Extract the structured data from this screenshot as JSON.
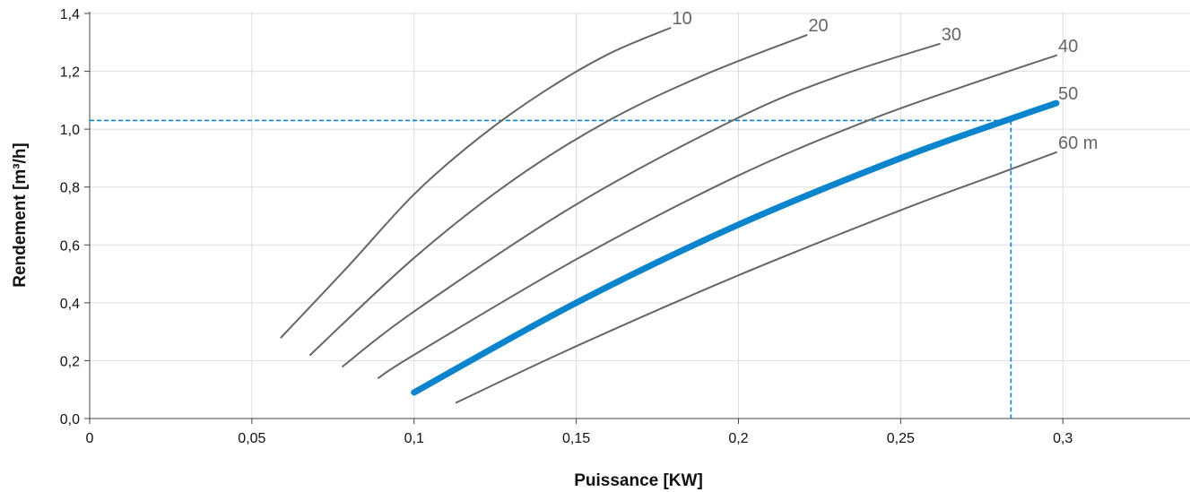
{
  "chart_data": {
    "type": "line",
    "title": "",
    "xlabel": "Puissance [KW]",
    "ylabel": "Rendement [m³/h]",
    "xlim": [
      0,
      0.345
    ],
    "ylim": [
      0,
      1.4
    ],
    "x_ticks": [
      {
        "value": 0,
        "label": "0"
      },
      {
        "value": 0.05,
        "label": "0,05"
      },
      {
        "value": 0.1,
        "label": "0,1"
      },
      {
        "value": 0.15,
        "label": "0,15"
      },
      {
        "value": 0.2,
        "label": "0,2"
      },
      {
        "value": 0.25,
        "label": "0,25"
      },
      {
        "value": 0.3,
        "label": "0,3"
      }
    ],
    "y_ticks": [
      {
        "value": 0,
        "label": "0,0"
      },
      {
        "value": 0.2,
        "label": "0,2"
      },
      {
        "value": 0.4,
        "label": "0,4"
      },
      {
        "value": 0.6,
        "label": "0,6"
      },
      {
        "value": 0.8,
        "label": "0,8"
      },
      {
        "value": 1.0,
        "label": "1,0"
      },
      {
        "value": 1.2,
        "label": "1,2"
      },
      {
        "value": 1.4,
        "label": "1,4"
      }
    ],
    "grid": true,
    "colors": {
      "curve": "#666666",
      "highlight": "#0a84cc",
      "grid": "#dddddd",
      "axis": "#444444",
      "reference": "#0a84cc"
    },
    "series": [
      {
        "label": "10",
        "highlight": false,
        "points": [
          [
            0.059,
            0.28
          ],
          [
            0.08,
            0.53
          ],
          [
            0.1,
            0.775
          ],
          [
            0.12,
            0.97
          ],
          [
            0.14,
            1.13
          ],
          [
            0.16,
            1.26
          ],
          [
            0.179,
            1.35
          ]
        ]
      },
      {
        "label": "20",
        "highlight": false,
        "points": [
          [
            0.068,
            0.22
          ],
          [
            0.1,
            0.555
          ],
          [
            0.13,
            0.82
          ],
          [
            0.16,
            1.03
          ],
          [
            0.19,
            1.19
          ],
          [
            0.221,
            1.325
          ]
        ]
      },
      {
        "label": "30",
        "highlight": false,
        "points": [
          [
            0.078,
            0.18
          ],
          [
            0.1,
            0.37
          ],
          [
            0.15,
            0.74
          ],
          [
            0.2,
            1.04
          ],
          [
            0.23,
            1.18
          ],
          [
            0.262,
            1.295
          ]
        ]
      },
      {
        "label": "40",
        "highlight": false,
        "points": [
          [
            0.089,
            0.14
          ],
          [
            0.1,
            0.22
          ],
          [
            0.15,
            0.55
          ],
          [
            0.2,
            0.84
          ],
          [
            0.24,
            1.03
          ],
          [
            0.27,
            1.15
          ],
          [
            0.298,
            1.255
          ]
        ]
      },
      {
        "label": "50",
        "highlight": true,
        "points": [
          [
            0.1,
            0.09
          ],
          [
            0.15,
            0.4
          ],
          [
            0.2,
            0.67
          ],
          [
            0.25,
            0.9
          ],
          [
            0.285,
            1.04
          ],
          [
            0.298,
            1.09
          ]
        ]
      },
      {
        "label": "60 m",
        "highlight": false,
        "points": [
          [
            0.113,
            0.055
          ],
          [
            0.15,
            0.25
          ],
          [
            0.2,
            0.495
          ],
          [
            0.25,
            0.72
          ],
          [
            0.28,
            0.845
          ],
          [
            0.298,
            0.92
          ]
        ]
      }
    ],
    "reference_point": {
      "x": 0.284,
      "y": 1.03,
      "style": "dashed"
    }
  }
}
